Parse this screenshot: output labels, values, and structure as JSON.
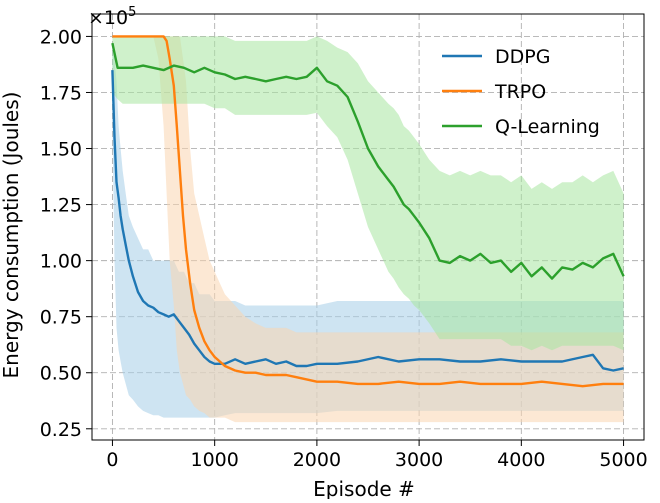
{
  "chart_data": {
    "type": "line",
    "title": "",
    "xlabel": "Episode #",
    "ylabel": "Energy consumption (Joules)",
    "y_multiplier_label": "×10",
    "y_multiplier_exponent": "5",
    "xlim": [
      -200,
      5200
    ],
    "ylim": [
      0.2,
      2.1
    ],
    "x_ticks": [
      0,
      1000,
      2000,
      3000,
      4000,
      5000
    ],
    "x_tick_labels": [
      "0",
      "1000",
      "2000",
      "3000",
      "4000",
      "5000"
    ],
    "y_ticks": [
      0.25,
      0.5,
      0.75,
      1.0,
      1.25,
      1.5,
      1.75,
      2.0
    ],
    "y_tick_labels": [
      "0.25",
      "0.50",
      "0.75",
      "1.00",
      "1.25",
      "1.50",
      "1.75",
      "2.00"
    ],
    "grid": true,
    "legend_position": "top-right",
    "series": [
      {
        "name": "DDPG",
        "color": "#1f77b4",
        "band_color": "#a6cde8",
        "x": [
          0,
          20,
          40,
          60,
          80,
          100,
          130,
          160,
          200,
          250,
          300,
          350,
          400,
          450,
          500,
          550,
          600,
          650,
          700,
          750,
          800,
          850,
          900,
          950,
          1000,
          1100,
          1200,
          1300,
          1400,
          1500,
          1600,
          1700,
          1800,
          1900,
          2000,
          2200,
          2400,
          2600,
          2800,
          3000,
          3200,
          3400,
          3600,
          3800,
          4000,
          4200,
          4400,
          4600,
          4700,
          4800,
          4900,
          5000
        ],
        "y": [
          1.85,
          1.55,
          1.35,
          1.28,
          1.2,
          1.14,
          1.07,
          1.0,
          0.93,
          0.86,
          0.82,
          0.8,
          0.79,
          0.77,
          0.76,
          0.75,
          0.76,
          0.73,
          0.7,
          0.67,
          0.63,
          0.6,
          0.57,
          0.55,
          0.54,
          0.54,
          0.56,
          0.54,
          0.55,
          0.56,
          0.54,
          0.55,
          0.53,
          0.53,
          0.54,
          0.54,
          0.55,
          0.57,
          0.55,
          0.56,
          0.56,
          0.55,
          0.55,
          0.56,
          0.55,
          0.55,
          0.55,
          0.57,
          0.58,
          0.52,
          0.51,
          0.52
        ],
        "band_low": [
          1.6,
          1.0,
          0.7,
          0.6,
          0.55,
          0.5,
          0.45,
          0.4,
          0.38,
          0.35,
          0.33,
          0.32,
          0.31,
          0.31,
          0.3,
          0.3,
          0.3,
          0.3,
          0.3,
          0.3,
          0.3,
          0.3,
          0.3,
          0.3,
          0.3,
          0.31,
          0.32,
          0.32,
          0.32,
          0.32,
          0.32,
          0.32,
          0.32,
          0.32,
          0.32,
          0.33,
          0.33,
          0.33,
          0.33,
          0.33,
          0.33,
          0.33,
          0.33,
          0.33,
          0.33,
          0.33,
          0.33,
          0.33,
          0.33,
          0.33,
          0.33,
          0.33
        ],
        "band_high": [
          1.95,
          1.9,
          1.8,
          1.6,
          1.5,
          1.4,
          1.3,
          1.2,
          1.15,
          1.1,
          1.05,
          1.05,
          1.0,
          1.0,
          1.0,
          1.0,
          1.0,
          0.95,
          0.95,
          0.9,
          0.9,
          0.85,
          0.85,
          0.85,
          0.82,
          0.82,
          0.82,
          0.8,
          0.8,
          0.8,
          0.8,
          0.8,
          0.8,
          0.8,
          0.8,
          0.82,
          0.82,
          0.82,
          0.82,
          0.82,
          0.82,
          0.82,
          0.82,
          0.82,
          0.82,
          0.82,
          0.82,
          0.82,
          0.82,
          0.82,
          0.82,
          0.82
        ]
      },
      {
        "name": "TRPO",
        "color": "#ff7f0e",
        "band_color": "#f9d6b0",
        "x": [
          0,
          100,
          200,
          300,
          400,
          450,
          500,
          530,
          560,
          600,
          630,
          660,
          690,
          720,
          760,
          800,
          850,
          900,
          950,
          1000,
          1050,
          1100,
          1200,
          1300,
          1400,
          1500,
          1600,
          1700,
          1800,
          2000,
          2200,
          2400,
          2600,
          2800,
          3000,
          3200,
          3400,
          3600,
          3800,
          4000,
          4200,
          4400,
          4600,
          4800,
          5000
        ],
        "y": [
          2.0,
          2.0,
          2.0,
          2.0,
          2.0,
          2.0,
          2.0,
          1.98,
          1.9,
          1.78,
          1.6,
          1.4,
          1.2,
          1.05,
          0.9,
          0.78,
          0.7,
          0.64,
          0.6,
          0.57,
          0.55,
          0.53,
          0.51,
          0.5,
          0.5,
          0.49,
          0.49,
          0.49,
          0.48,
          0.46,
          0.46,
          0.45,
          0.45,
          0.46,
          0.45,
          0.45,
          0.46,
          0.45,
          0.45,
          0.45,
          0.46,
          0.45,
          0.44,
          0.45,
          0.45
        ],
        "band_low": [
          2.0,
          2.0,
          2.0,
          2.0,
          2.0,
          1.9,
          1.6,
          1.3,
          1.0,
          0.8,
          0.6,
          0.5,
          0.45,
          0.4,
          0.38,
          0.35,
          0.33,
          0.32,
          0.3,
          0.3,
          0.3,
          0.3,
          0.28,
          0.28,
          0.28,
          0.28,
          0.28,
          0.28,
          0.28,
          0.28,
          0.28,
          0.28,
          0.28,
          0.28,
          0.28,
          0.28,
          0.28,
          0.28,
          0.28,
          0.28,
          0.28,
          0.28,
          0.28,
          0.28,
          0.28
        ],
        "band_high": [
          2.0,
          2.0,
          2.0,
          2.0,
          2.0,
          2.0,
          2.0,
          2.0,
          2.0,
          2.0,
          2.0,
          2.0,
          1.9,
          1.8,
          1.5,
          1.3,
          1.2,
          1.1,
          1.0,
          0.95,
          0.9,
          0.85,
          0.8,
          0.75,
          0.72,
          0.7,
          0.7,
          0.7,
          0.68,
          0.68,
          0.68,
          0.68,
          0.68,
          0.68,
          0.68,
          0.68,
          0.68,
          0.68,
          0.68,
          0.68,
          0.68,
          0.68,
          0.68,
          0.68,
          0.68
        ]
      },
      {
        "name": "Q-Learning",
        "color": "#2ca02c",
        "band_color": "#a8e6a0",
        "x": [
          0,
          50,
          100,
          200,
          300,
          400,
          500,
          600,
          700,
          800,
          900,
          1000,
          1100,
          1200,
          1300,
          1400,
          1500,
          1600,
          1700,
          1800,
          1900,
          2000,
          2100,
          2200,
          2300,
          2400,
          2500,
          2600,
          2700,
          2750,
          2800,
          2850,
          2900,
          2950,
          3000,
          3100,
          3200,
          3300,
          3400,
          3500,
          3600,
          3700,
          3800,
          3900,
          4000,
          4100,
          4200,
          4300,
          4400,
          4500,
          4600,
          4700,
          4800,
          4900,
          5000
        ],
        "y": [
          1.97,
          1.86,
          1.86,
          1.86,
          1.87,
          1.86,
          1.85,
          1.87,
          1.86,
          1.84,
          1.86,
          1.84,
          1.83,
          1.81,
          1.82,
          1.81,
          1.8,
          1.81,
          1.82,
          1.81,
          1.82,
          1.86,
          1.8,
          1.78,
          1.73,
          1.62,
          1.5,
          1.42,
          1.36,
          1.33,
          1.29,
          1.25,
          1.23,
          1.2,
          1.17,
          1.1,
          1.0,
          0.99,
          1.02,
          1.0,
          1.03,
          0.99,
          1.0,
          0.95,
          0.99,
          0.93,
          0.97,
          0.92,
          0.97,
          0.96,
          0.99,
          0.97,
          1.01,
          1.03,
          0.93
        ],
        "band_low": [
          1.75,
          1.72,
          1.7,
          1.7,
          1.7,
          1.7,
          1.7,
          1.7,
          1.7,
          1.7,
          1.7,
          1.68,
          1.68,
          1.65,
          1.65,
          1.65,
          1.65,
          1.65,
          1.65,
          1.65,
          1.65,
          1.66,
          1.6,
          1.55,
          1.45,
          1.3,
          1.15,
          1.05,
          0.95,
          0.92,
          0.88,
          0.85,
          0.83,
          0.8,
          0.78,
          0.72,
          0.65,
          0.65,
          0.65,
          0.65,
          0.65,
          0.65,
          0.65,
          0.62,
          0.62,
          0.6,
          0.62,
          0.6,
          0.62,
          0.62,
          0.62,
          0.62,
          0.62,
          0.62,
          0.6
        ],
        "band_high": [
          2.0,
          2.0,
          2.0,
          2.0,
          2.0,
          2.0,
          2.0,
          2.0,
          2.0,
          2.0,
          2.0,
          2.0,
          2.0,
          1.98,
          1.98,
          1.98,
          1.98,
          1.98,
          1.98,
          1.98,
          1.98,
          2.0,
          1.98,
          1.95,
          1.93,
          1.88,
          1.8,
          1.75,
          1.7,
          1.68,
          1.65,
          1.6,
          1.58,
          1.55,
          1.52,
          1.45,
          1.4,
          1.38,
          1.4,
          1.38,
          1.4,
          1.38,
          1.38,
          1.35,
          1.38,
          1.32,
          1.35,
          1.32,
          1.35,
          1.35,
          1.38,
          1.35,
          1.38,
          1.4,
          1.3
        ]
      }
    ]
  }
}
